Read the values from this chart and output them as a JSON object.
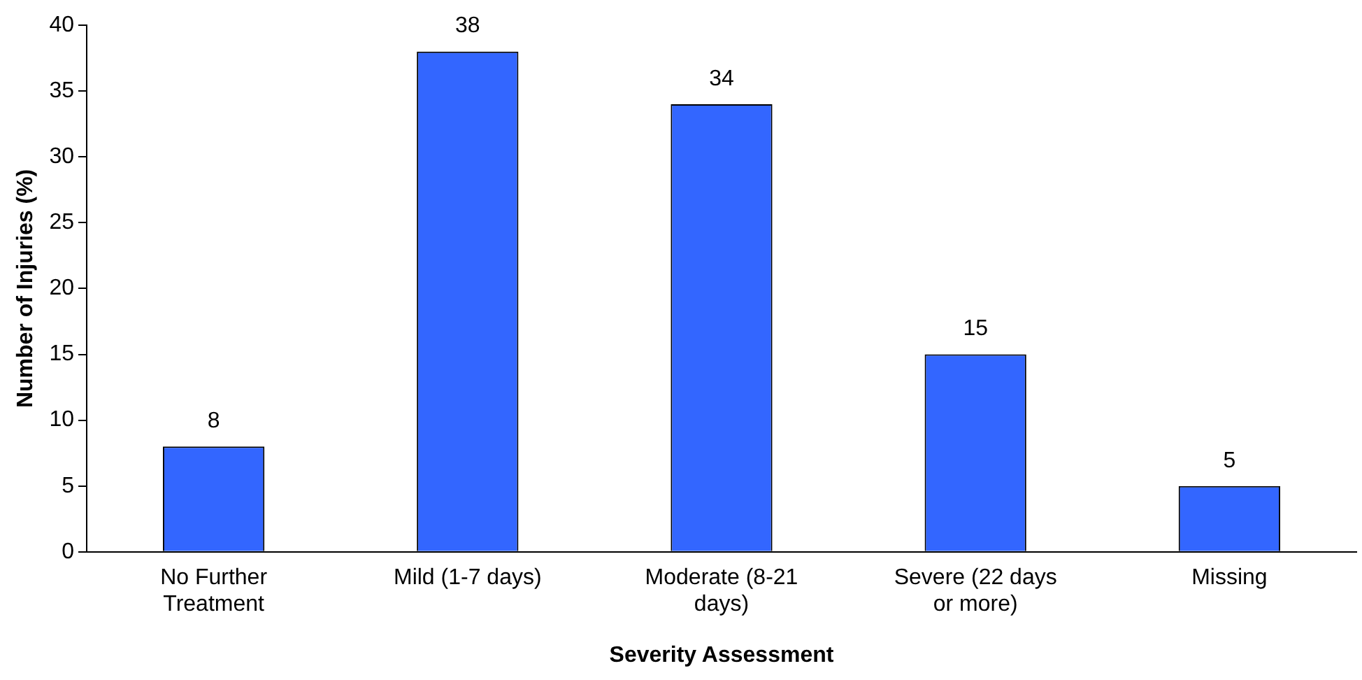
{
  "chart_data": {
    "type": "bar",
    "xlabel": "Severity Assessment",
    "ylabel": "Number of Injuries (%)",
    "categories": [
      "No Further Treatment",
      "Mild (1-7 days)",
      "Moderate (8-21 days)",
      "Severe (22 days or more)",
      "Missing"
    ],
    "values": [
      8,
      38,
      34,
      15,
      5
    ],
    "color": "#3366ff",
    "ylim": [
      0,
      40
    ],
    "yticks": [
      0,
      5,
      10,
      15,
      20,
      25,
      30,
      35,
      40
    ],
    "grid": false,
    "legend": false,
    "data_labels": true
  }
}
